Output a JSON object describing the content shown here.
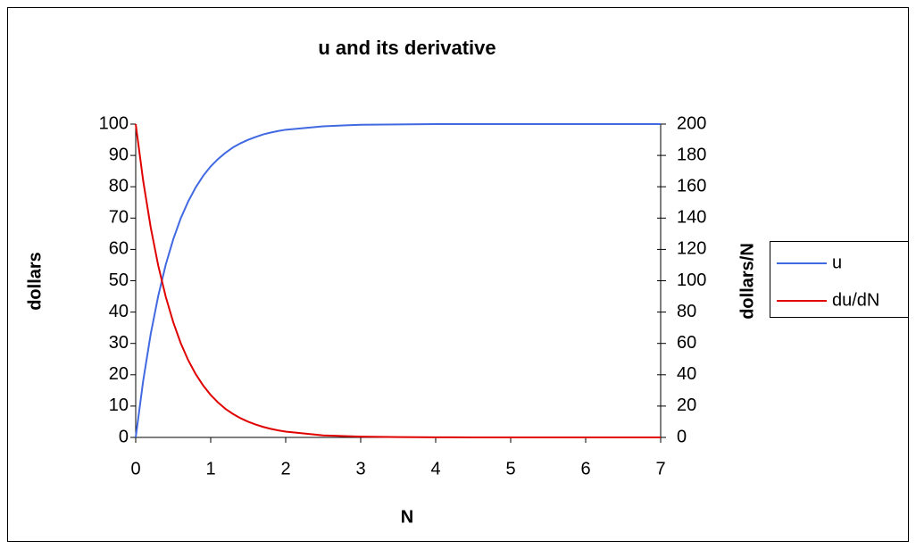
{
  "chart_data": {
    "type": "line",
    "title": "u and its derivative",
    "xlabel": "N",
    "ylabel": "dollars",
    "y2label": "dollars/N",
    "x": [
      0,
      0.1,
      0.2,
      0.3,
      0.4,
      0.5,
      0.6,
      0.7,
      0.8,
      0.9,
      1.0,
      1.1,
      1.2,
      1.3,
      1.4,
      1.5,
      1.6,
      1.7,
      1.8,
      1.9,
      2.0,
      2.5,
      3,
      3.5,
      4,
      4.5,
      5,
      5.5,
      6,
      6.5,
      7
    ],
    "series": [
      {
        "name": "u",
        "color": "#4169e1",
        "axis": "y",
        "values": [
          0,
          18.1,
          33.0,
          45.1,
          55.1,
          63.2,
          69.9,
          75.3,
          79.8,
          83.5,
          86.5,
          88.9,
          90.9,
          92.6,
          93.9,
          95.0,
          95.9,
          96.7,
          97.3,
          97.8,
          98.2,
          99.3,
          99.8,
          99.9,
          100,
          100,
          100,
          100,
          100,
          100,
          100
        ]
      },
      {
        "name": "du/dN",
        "color": "#e00000",
        "axis": "y2",
        "values": [
          200,
          163.7,
          134.1,
          109.8,
          89.9,
          73.6,
          60.2,
          49.3,
          40.4,
          33.1,
          27.1,
          22.2,
          18.1,
          14.9,
          12.2,
          10.0,
          8.2,
          6.7,
          5.5,
          4.5,
          3.7,
          1.3,
          0.5,
          0.2,
          0.1,
          0,
          0,
          0,
          0,
          0,
          0
        ]
      }
    ],
    "xlim": [
      0,
      7
    ],
    "xticks": [
      0,
      1,
      2,
      3,
      4,
      5,
      6,
      7
    ],
    "ylim": [
      0,
      100
    ],
    "yticks": [
      0,
      10,
      20,
      30,
      40,
      50,
      60,
      70,
      80,
      90,
      100
    ],
    "y2lim": [
      0,
      200
    ],
    "y2ticks": [
      0,
      20,
      40,
      60,
      80,
      100,
      120,
      140,
      160,
      180,
      200
    ],
    "grid": false,
    "legend": "right"
  }
}
